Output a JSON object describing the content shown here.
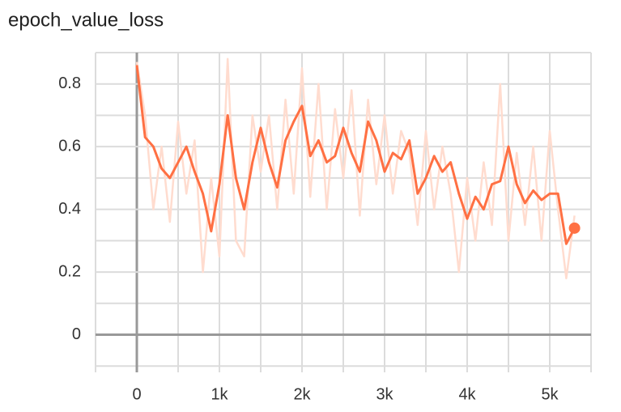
{
  "chart_data": {
    "type": "line",
    "title": "epoch_value_loss",
    "x": [
      0,
      100,
      200,
      300,
      400,
      500,
      600,
      700,
      800,
      900,
      1000,
      1100,
      1200,
      1300,
      1400,
      1500,
      1600,
      1700,
      1800,
      1900,
      2000,
      2100,
      2200,
      2300,
      2400,
      2500,
      2600,
      2700,
      2800,
      2900,
      3000,
      3100,
      3200,
      3300,
      3400,
      3500,
      3600,
      3700,
      3800,
      3900,
      4000,
      4100,
      4200,
      4300,
      4400,
      4500,
      4600,
      4700,
      4800,
      4900,
      5000,
      5100,
      5200,
      5300
    ],
    "series": [
      {
        "color": "#ffdccf",
        "values": [
          0.87,
          0.7,
          0.4,
          0.6,
          0.36,
          0.68,
          0.45,
          0.62,
          0.2,
          0.5,
          0.25,
          0.88,
          0.3,
          0.25,
          0.7,
          0.52,
          0.7,
          0.4,
          0.75,
          0.45,
          0.85,
          0.44,
          0.8,
          0.4,
          0.72,
          0.5,
          0.78,
          0.38,
          0.75,
          0.48,
          0.7,
          0.45,
          0.65,
          0.58,
          0.35,
          0.65,
          0.4,
          0.6,
          0.45,
          0.2,
          0.5,
          0.3,
          0.55,
          0.35,
          0.8,
          0.3,
          0.58,
          0.35,
          0.6,
          0.3,
          0.65,
          0.4,
          0.18,
          0.38
        ]
      },
      {
        "color": "#ff7043",
        "last_point_marker": true,
        "values": [
          0.86,
          0.63,
          0.6,
          0.53,
          0.5,
          0.55,
          0.6,
          0.52,
          0.45,
          0.33,
          0.48,
          0.7,
          0.5,
          0.4,
          0.55,
          0.66,
          0.55,
          0.47,
          0.62,
          0.68,
          0.73,
          0.57,
          0.62,
          0.55,
          0.57,
          0.66,
          0.58,
          0.52,
          0.68,
          0.62,
          0.52,
          0.58,
          0.56,
          0.62,
          0.45,
          0.5,
          0.57,
          0.52,
          0.55,
          0.45,
          0.37,
          0.44,
          0.4,
          0.48,
          0.49,
          0.6,
          0.48,
          0.42,
          0.46,
          0.43,
          0.45,
          0.45,
          0.29,
          0.34
        ]
      }
    ],
    "xlim": [
      -500,
      5500
    ],
    "ylim": [
      -0.12,
      0.9
    ],
    "xticks": [
      0,
      {
        "value": 1000,
        "label": "1k"
      },
      {
        "value": 2000,
        "label": "2k"
      },
      {
        "value": 3000,
        "label": "3k"
      },
      {
        "value": 4000,
        "label": "4k"
      },
      {
        "value": 5000,
        "label": "5k"
      }
    ],
    "yticks": [
      0,
      0.2,
      0.4,
      0.6,
      0.8
    ],
    "xgrid_minor": [
      -500,
      500,
      1500,
      2500,
      3500,
      4500,
      5500
    ],
    "ygrid_minor": [
      -0.1,
      0.1,
      0.3,
      0.5,
      0.7,
      0.9
    ],
    "grid": true
  }
}
